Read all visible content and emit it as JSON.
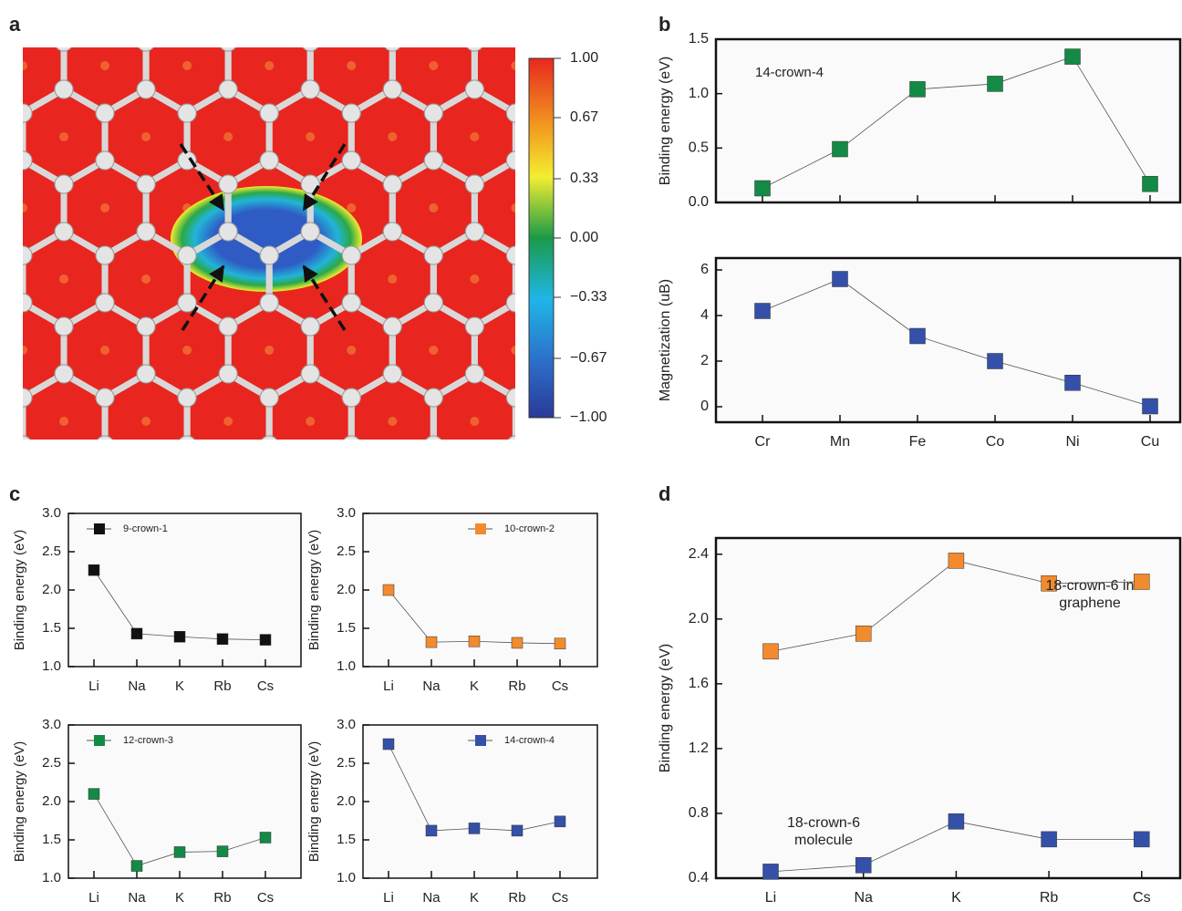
{
  "chart_data": [
    {
      "type": "colorbar",
      "panel": "a",
      "ylim": [
        -1,
        1
      ],
      "yticks": [
        {
          "value": 1,
          "label": "1.00"
        },
        {
          "value": 0.67,
          "label": "0.67"
        },
        {
          "value": 0.33,
          "label": "0.33"
        },
        {
          "value": 0,
          "label": "0.00"
        },
        {
          "value": -0.33,
          "label": "−0.33"
        },
        {
          "value": -0.67,
          "label": "−0.67"
        },
        {
          "value": -1,
          "label": "−1.00"
        }
      ]
    },
    {
      "type": "line",
      "panel": "b",
      "ylabel": "Binding energy (eV)",
      "annotation": "14-crown-4",
      "color": "#138a45",
      "values": [
        0.13,
        0.49,
        1.04,
        1.09,
        1.34,
        0.17
      ],
      "ylim": [
        0,
        1.5
      ],
      "yticks": [
        {
          "value": 0,
          "label": "0.0"
        },
        0.5,
        {
          "value": 1,
          "label": "1.0"
        },
        1.5
      ]
    },
    {
      "type": "line",
      "ylabel": "Magnetization (uB)",
      "color": "#3450a8",
      "categories": [
        "Cr",
        "Mn",
        "Fe",
        "Co",
        "Ni",
        "Cu"
      ],
      "values": [
        4.2,
        5.6,
        3.1,
        2.0,
        1.05,
        0.02
      ],
      "ylim": [
        -0.68,
        6.52
      ],
      "yticks": [
        0,
        2,
        4,
        6
      ]
    },
    {
      "type": "line",
      "panel": "c",
      "ylabel": "Binding energy (eV)",
      "categories": [
        "Li",
        "Na",
        "K",
        "Rb",
        "Cs"
      ],
      "series": [
        {
          "name": "9-crown-1",
          "color": "#111111",
          "values": [
            2.26,
            1.43,
            1.39,
            1.36,
            1.35
          ]
        }
      ],
      "ylim": [
        1,
        3
      ],
      "yticks": [
        {
          "value": 1,
          "label": "1.0"
        },
        1.5,
        {
          "value": 2,
          "label": "2.0"
        },
        2.5,
        {
          "value": 3,
          "label": "3.0"
        }
      ]
    },
    {
      "type": "line",
      "ylabel": "Binding energy (eV)",
      "categories": [
        "Li",
        "Na",
        "K",
        "Rb",
        "Cs"
      ],
      "series": [
        {
          "name": "10-crown-2",
          "color": "#f28a2e",
          "values": [
            2.0,
            1.32,
            1.33,
            1.31,
            1.3
          ]
        }
      ],
      "ylim": [
        1,
        3
      ],
      "yticks": [
        {
          "value": 1,
          "label": "1.0"
        },
        1.5,
        {
          "value": 2,
          "label": "2.0"
        },
        2.5,
        {
          "value": 3,
          "label": "3.0"
        }
      ]
    },
    {
      "type": "line",
      "ylabel": "Binding energy (eV)",
      "categories": [
        "Li",
        "Na",
        "K",
        "Rb",
        "Cs"
      ],
      "series": [
        {
          "name": "12-crown-3",
          "color": "#138a45",
          "values": [
            2.1,
            1.16,
            1.34,
            1.35,
            1.53
          ]
        }
      ],
      "ylim": [
        1,
        3
      ],
      "yticks": [
        {
          "value": 1,
          "label": "1.0"
        },
        1.5,
        {
          "value": 2,
          "label": "2.0"
        },
        2.5,
        {
          "value": 3,
          "label": "3.0"
        }
      ]
    },
    {
      "type": "line",
      "ylabel": "Binding energy (eV)",
      "categories": [
        "Li",
        "Na",
        "K",
        "Rb",
        "Cs"
      ],
      "series": [
        {
          "name": "14-crown-4",
          "color": "#3450a8",
          "values": [
            2.75,
            1.62,
            1.65,
            1.62,
            1.74
          ]
        }
      ],
      "ylim": [
        1,
        3
      ],
      "yticks": [
        {
          "value": 1,
          "label": "1.0"
        },
        1.5,
        {
          "value": 2,
          "label": "2.0"
        },
        2.5,
        {
          "value": 3,
          "label": "3.0"
        }
      ]
    },
    {
      "type": "line",
      "panel": "d",
      "ylabel": "Binding energy (eV)",
      "categories": [
        "Li",
        "Na",
        "K",
        "Rb",
        "Cs"
      ],
      "series": [
        {
          "name": "18-crown-6 in graphene",
          "color": "#f28a2e",
          "values": [
            1.8,
            1.91,
            2.36,
            2.22,
            2.23
          ]
        },
        {
          "name": "18-crown-6 molecule",
          "color": "#3450a8",
          "values": [
            0.44,
            0.48,
            0.75,
            0.64,
            0.64
          ]
        }
      ],
      "ylim": [
        0.4,
        2.5
      ],
      "yticks": [
        0.4,
        0.8,
        1.2,
        1.6,
        {
          "value": 2,
          "label": "2.0"
        },
        2.4
      ]
    }
  ]
}
